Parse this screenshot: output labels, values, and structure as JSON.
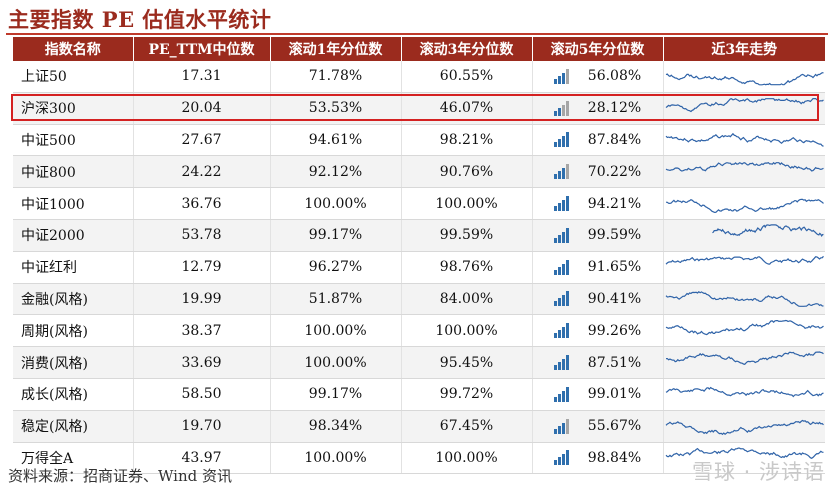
{
  "title": "主要指数 PE 估值水平统计",
  "headers": [
    "指数名称",
    "PE_TTM中位数",
    "滚动1年分位数",
    "滚动3年分位数",
    "滚动5年分位数",
    "近3年走势"
  ],
  "rows": [
    {
      "name": "上证50",
      "pe": "17.31",
      "p1": "71.78%",
      "p3": "60.55%",
      "p5": "56.08%",
      "level": 3
    },
    {
      "name": "沪深300",
      "pe": "20.04",
      "p1": "53.53%",
      "p3": "46.07%",
      "p5": "28.12%",
      "level": 2
    },
    {
      "name": "中证500",
      "pe": "27.67",
      "p1": "94.61%",
      "p3": "98.21%",
      "p5": "87.84%",
      "level": 4
    },
    {
      "name": "中证800",
      "pe": "24.22",
      "p1": "92.12%",
      "p3": "90.76%",
      "p5": "70.22%",
      "level": 3
    },
    {
      "name": "中证1000",
      "pe": "36.76",
      "p1": "100.00%",
      "p3": "100.00%",
      "p5": "94.21%",
      "level": 4
    },
    {
      "name": "中证2000",
      "pe": "53.78",
      "p1": "99.17%",
      "p3": "99.59%",
      "p5": "99.59%",
      "level": 4
    },
    {
      "name": "中证红利",
      "pe": "12.79",
      "p1": "96.27%",
      "p3": "98.76%",
      "p5": "91.65%",
      "level": 4
    },
    {
      "name": "金融(风格)",
      "pe": "19.99",
      "p1": "51.87%",
      "p3": "84.00%",
      "p5": "90.41%",
      "level": 4
    },
    {
      "name": "周期(风格)",
      "pe": "38.37",
      "p1": "100.00%",
      "p3": "100.00%",
      "p5": "99.26%",
      "level": 4
    },
    {
      "name": "消费(风格)",
      "pe": "33.69",
      "p1": "100.00%",
      "p3": "95.45%",
      "p5": "87.51%",
      "level": 4
    },
    {
      "name": "成长(风格)",
      "pe": "58.50",
      "p1": "99.17%",
      "p3": "99.72%",
      "p5": "99.01%",
      "level": 4
    },
    {
      "name": "稳定(风格)",
      "pe": "19.70",
      "p1": "98.34%",
      "p3": "67.45%",
      "p5": "55.67%",
      "level": 3
    },
    {
      "name": "万得全A",
      "pe": "43.97",
      "p1": "100.00%",
      "p3": "100.00%",
      "p5": "98.84%",
      "level": 4
    }
  ],
  "highlighted_row": "沪深300",
  "source": "资料来源：招商证券、Wind 资讯",
  "watermark": "雪球 · 涉诗语",
  "colors": {
    "header_bg": "#9b2b1e",
    "title": "#9b2b1e",
    "bar_on": "#2f6fad",
    "bar_off": "#a6a6a6",
    "spark": "#2f63a8",
    "highlight": "#d42121"
  }
}
